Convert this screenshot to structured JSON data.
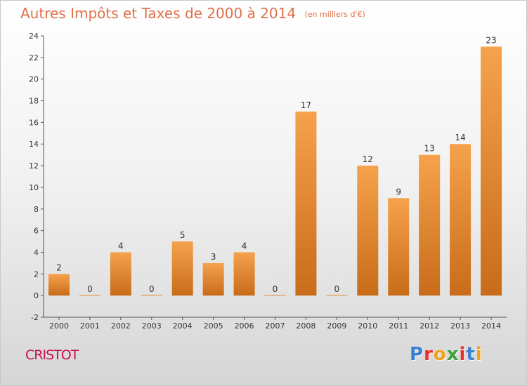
{
  "header": {
    "title": "Autres Impôts et Taxes de 2000 à 2014",
    "unit": "(en milliers d'€)"
  },
  "footer": {
    "commune": "CRISTOT",
    "logo": "Proxiti"
  },
  "colors": {
    "title": "#e0704a",
    "commune": "#c8104a",
    "bar_top": "#f6a24d",
    "bar_bottom": "#c86c1a",
    "logo_letters": [
      "#3a7fd0",
      "#e8302a",
      "#f2a21a",
      "#3aa03a",
      "#e8302a",
      "#3a7fd0",
      "#f2a21a"
    ]
  },
  "chart_data": {
    "type": "bar",
    "title": "Autres Impôts et Taxes de 2000 à 2014",
    "subtitle": "(en milliers d'€)",
    "xlabel": "",
    "ylabel": "",
    "categories": [
      "2000",
      "2001",
      "2002",
      "2003",
      "2004",
      "2005",
      "2006",
      "2007",
      "2008",
      "2009",
      "2010",
      "2011",
      "2012",
      "2013",
      "2014"
    ],
    "values": [
      2,
      0,
      4,
      0,
      5,
      3,
      4,
      0,
      17,
      0,
      12,
      9,
      13,
      14,
      23
    ],
    "ylim": [
      -2,
      24
    ],
    "yticks": [
      -2,
      0,
      2,
      4,
      6,
      8,
      10,
      12,
      14,
      16,
      18,
      20,
      22,
      24
    ],
    "grid": false,
    "legend": "none"
  }
}
